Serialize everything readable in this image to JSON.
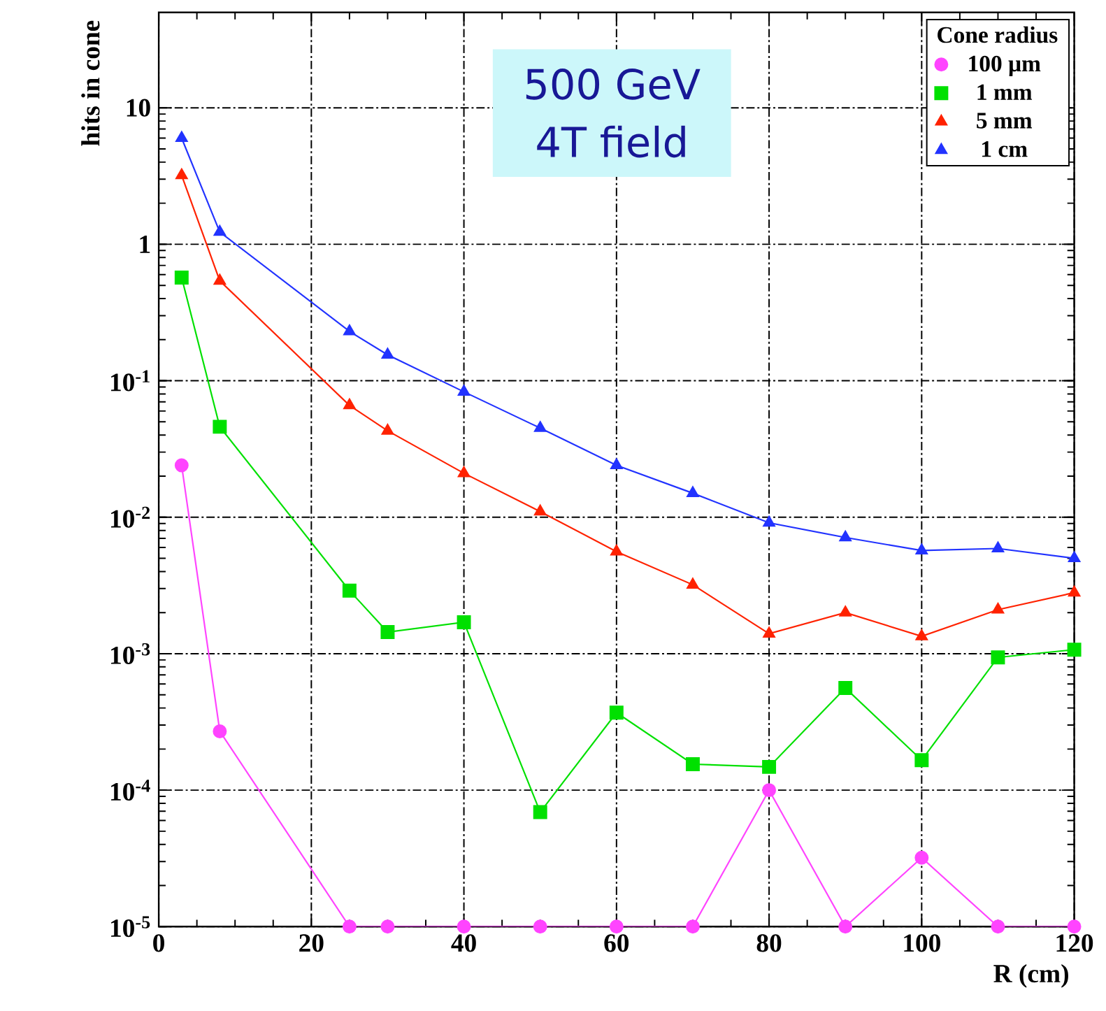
{
  "chart_data": {
    "type": "line",
    "xlabel": "R (cm)",
    "ylabel": "hits in cone",
    "legend_title": "Cone radius",
    "annotations": [
      "500 GeV",
      "4T field"
    ],
    "x": [
      3,
      8,
      25,
      30,
      40,
      50,
      60,
      70,
      80,
      90,
      100,
      110,
      120
    ],
    "series": [
      {
        "name": "100 μm",
        "color": "#ff44ff",
        "marker": "circle",
        "values": [
          0.024,
          0.00027,
          1e-05,
          1e-05,
          1e-05,
          1e-05,
          1e-05,
          1e-05,
          0.0001,
          1e-05,
          3.2e-05,
          1e-05,
          1e-05
        ]
      },
      {
        "name": "1 mm",
        "color": "#00e000",
        "marker": "square",
        "values": [
          0.57,
          0.046,
          0.0029,
          0.00144,
          0.0017,
          6.9e-05,
          0.00037,
          0.000155,
          0.000148,
          0.00056,
          0.000166,
          0.00094,
          0.00107
        ]
      },
      {
        "name": "5 mm",
        "color": "#ff2200",
        "marker": "triangle",
        "values": [
          3.2,
          0.54,
          0.066,
          0.043,
          0.021,
          0.011,
          0.0056,
          0.0032,
          0.0014,
          0.002,
          0.00134,
          0.0021,
          0.0028
        ]
      },
      {
        "name": "1 cm",
        "color": "#2233ff",
        "marker": "triangle-down",
        "values": [
          6.0,
          1.23,
          0.23,
          0.155,
          0.083,
          0.045,
          0.024,
          0.015,
          0.0091,
          0.0071,
          0.0057,
          0.0059,
          0.005
        ]
      }
    ],
    "log": "y",
    "grid": true,
    "legend": "top right",
    "xlim": [
      0,
      120
    ],
    "xticks": [
      0,
      20,
      40,
      60,
      80,
      100,
      120
    ],
    "ylim": [
      1e-05,
      50
    ],
    "yticks": [
      {
        "value": 1e-05,
        "label": "10$^{-5}$"
      },
      {
        "value": 0.0001,
        "label": "10$^{-4}$"
      },
      {
        "value": 0.001,
        "label": "10$^{-3}$"
      },
      {
        "value": 0.01,
        "label": "10$^{-2}$"
      },
      {
        "value": 0.1,
        "label": "10$^{-1}$"
      },
      {
        "value": 1,
        "label": "1"
      },
      {
        "value": 10,
        "label": "10"
      }
    ]
  }
}
